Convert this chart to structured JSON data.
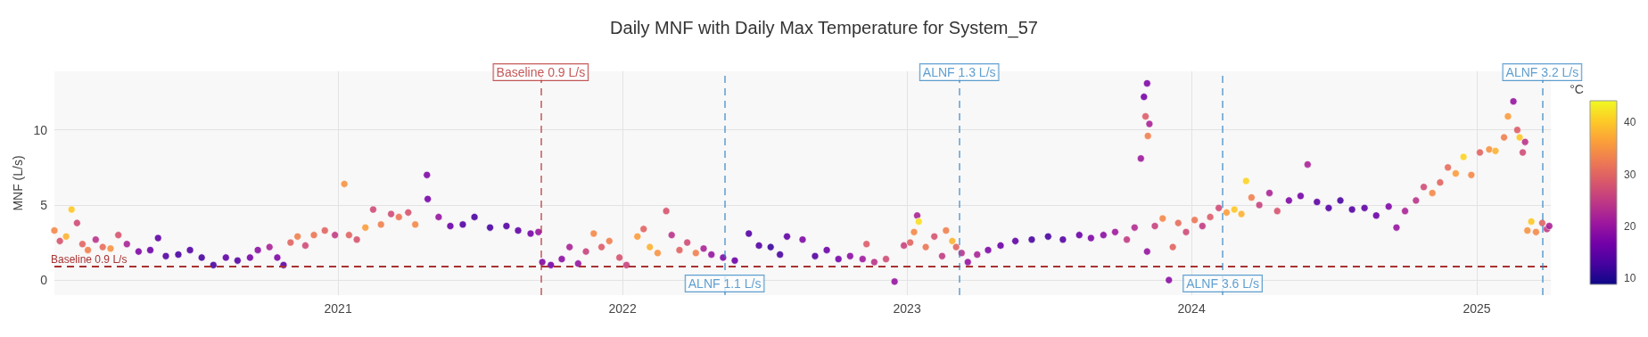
{
  "chart_data": {
    "type": "scatter",
    "title": "Daily MNF with Daily Max Temperature for System_57",
    "ylabel": "MNF (L/s)",
    "clabel": "°C",
    "x": [
      "2020-01-03",
      "2020-01-10",
      "2020-01-18",
      "2020-01-25",
      "2020-02-01",
      "2020-02-08",
      "2020-02-15",
      "2020-02-25",
      "2020-03-05",
      "2020-03-15",
      "2020-03-25",
      "2020-04-05",
      "2020-04-20",
      "2020-05-05",
      "2020-05-15",
      "2020-05-25",
      "2020-06-10",
      "2020-06-25",
      "2020-07-10",
      "2020-07-25",
      "2020-08-10",
      "2020-08-25",
      "2020-09-10",
      "2020-09-20",
      "2020-10-05",
      "2020-10-15",
      "2020-10-23",
      "2020-11-01",
      "2020-11-10",
      "2020-11-20",
      "2020-12-01",
      "2020-12-15",
      "2020-12-28",
      "2021-01-09",
      "2021-01-15",
      "2021-01-25",
      "2021-02-05",
      "2021-02-15",
      "2021-02-25",
      "2021-03-10",
      "2021-03-20",
      "2021-04-01",
      "2021-04-10",
      "2021-04-25",
      "2021-04-26",
      "2021-05-10",
      "2021-05-25",
      "2021-06-10",
      "2021-06-25",
      "2021-07-15",
      "2021-08-05",
      "2021-08-20",
      "2021-09-05",
      "2021-09-15",
      "2021-09-20",
      "2021-10-01",
      "2021-10-15",
      "2021-10-25",
      "2021-11-05",
      "2021-11-15",
      "2021-11-25",
      "2021-12-05",
      "2021-12-15",
      "2021-12-28",
      "2022-01-06",
      "2022-01-20",
      "2022-01-28",
      "2022-02-05",
      "2022-02-15",
      "2022-02-26",
      "2022-03-05",
      "2022-03-15",
      "2022-03-25",
      "2022-04-05",
      "2022-04-15",
      "2022-04-25",
      "2022-05-10",
      "2022-05-25",
      "2022-06-12",
      "2022-06-25",
      "2022-07-10",
      "2022-07-22",
      "2022-07-31",
      "2022-08-20",
      "2022-09-05",
      "2022-09-20",
      "2022-10-05",
      "2022-10-20",
      "2022-11-05",
      "2022-11-10",
      "2022-11-20",
      "2022-12-05",
      "2022-12-16",
      "2022-12-28",
      "2023-01-05",
      "2023-01-10",
      "2023-01-14",
      "2023-01-16",
      "2023-01-25",
      "2023-02-05",
      "2023-02-15",
      "2023-02-20",
      "2023-02-28",
      "2023-03-05",
      "2023-03-12",
      "2023-03-20",
      "2023-04-01",
      "2023-04-15",
      "2023-05-01",
      "2023-05-20",
      "2023-06-10",
      "2023-07-01",
      "2023-07-20",
      "2023-08-10",
      "2023-08-25",
      "2023-09-10",
      "2023-09-25",
      "2023-10-10",
      "2023-10-20",
      "2023-10-28",
      "2023-11-01",
      "2023-11-03",
      "2023-11-05",
      "2023-11-06",
      "2023-11-08",
      "2023-11-05",
      "2023-11-15",
      "2023-11-25",
      "2023-12-03",
      "2023-12-08",
      "2023-12-15",
      "2023-12-25",
      "2024-01-05",
      "2024-01-15",
      "2024-01-25",
      "2024-02-05",
      "2024-02-15",
      "2024-02-25",
      "2024-03-05",
      "2024-03-11",
      "2024-03-18",
      "2024-03-28",
      "2024-04-10",
      "2024-04-20",
      "2024-05-05",
      "2024-05-20",
      "2024-05-29",
      "2024-06-10",
      "2024-06-25",
      "2024-07-10",
      "2024-07-25",
      "2024-08-10",
      "2024-08-25",
      "2024-09-10",
      "2024-09-20",
      "2024-10-01",
      "2024-10-15",
      "2024-10-25",
      "2024-11-05",
      "2024-11-15",
      "2024-11-25",
      "2024-12-05",
      "2024-12-15",
      "2024-12-25",
      "2025-01-05",
      "2025-01-17",
      "2025-01-25",
      "2025-02-05",
      "2025-02-10",
      "2025-02-17",
      "2025-02-22",
      "2025-02-25",
      "2025-03-01",
      "2025-03-04",
      "2025-03-07",
      "2025-03-12",
      "2025-03-18",
      "2025-03-26",
      "2025-04-01",
      "2025-04-04"
    ],
    "values": [
      3.3,
      2.6,
      2.9,
      4.7,
      3.8,
      2.4,
      2.0,
      2.7,
      2.2,
      2.1,
      3.0,
      2.4,
      1.9,
      2.0,
      2.8,
      1.6,
      1.7,
      2.0,
      1.5,
      1.0,
      1.5,
      1.3,
      1.5,
      2.0,
      2.2,
      1.5,
      1.0,
      2.5,
      2.9,
      2.3,
      3.0,
      3.3,
      3.0,
      6.4,
      3.0,
      2.7,
      3.5,
      4.7,
      3.7,
      4.4,
      4.2,
      4.5,
      3.7,
      7.0,
      5.4,
      4.2,
      3.6,
      3.7,
      4.2,
      3.5,
      3.6,
      3.3,
      3.1,
      3.2,
      1.2,
      1.0,
      1.4,
      2.2,
      1.1,
      1.9,
      3.1,
      2.2,
      2.6,
      1.5,
      1.0,
      2.9,
      3.4,
      2.2,
      1.8,
      4.6,
      3.0,
      2.0,
      2.5,
      1.8,
      2.1,
      1.7,
      1.5,
      1.3,
      3.1,
      2.3,
      2.2,
      1.7,
      2.9,
      2.7,
      1.6,
      2.0,
      1.4,
      1.6,
      1.4,
      2.4,
      1.2,
      1.4,
      -0.1,
      2.3,
      2.5,
      3.2,
      4.3,
      3.9,
      2.2,
      2.9,
      1.6,
      3.3,
      2.6,
      2.2,
      1.8,
      1.2,
      1.7,
      2.0,
      2.3,
      2.6,
      2.7,
      2.9,
      2.7,
      3.0,
      2.8,
      3.0,
      3.2,
      2.7,
      3.5,
      8.1,
      12.2,
      10.9,
      13.1,
      9.6,
      10.4,
      1.9,
      3.6,
      4.1,
      0.0,
      2.2,
      3.8,
      3.2,
      4.0,
      3.6,
      4.2,
      4.8,
      4.5,
      4.7,
      4.4,
      6.6,
      5.5,
      5.0,
      5.8,
      4.6,
      5.3,
      5.6,
      7.7,
      5.2,
      4.8,
      5.3,
      4.7,
      4.8,
      4.3,
      4.9,
      3.5,
      4.6,
      5.3,
      6.2,
      5.8,
      6.5,
      7.5,
      7.1,
      8.2,
      7.0,
      8.5,
      8.7,
      8.6,
      9.5,
      10.9,
      11.9,
      10.0,
      9.5,
      8.5,
      9.2,
      3.3,
      3.9,
      3.2,
      3.8,
      3.4,
      3.6
    ],
    "cvalues": [
      34,
      28,
      38,
      40,
      27,
      30,
      33,
      24,
      31,
      35,
      28,
      22,
      18,
      16,
      15,
      14,
      13,
      14,
      13,
      13,
      15,
      14,
      17,
      19,
      22,
      18,
      15,
      30,
      33,
      27,
      32,
      30,
      25,
      35,
      30,
      28,
      36,
      27,
      33,
      27,
      32,
      28,
      34,
      18,
      17,
      20,
      16,
      14,
      13,
      13,
      14,
      15,
      17,
      20,
      18,
      17,
      19,
      22,
      20,
      26,
      34,
      29,
      33,
      28,
      26,
      36,
      30,
      38,
      35,
      28,
      24,
      30,
      27,
      33,
      22,
      20,
      18,
      16,
      14,
      14,
      12,
      13,
      15,
      18,
      14,
      16,
      17,
      19,
      21,
      29,
      24,
      27,
      20,
      26,
      30,
      34,
      22,
      42,
      32,
      28,
      25,
      33,
      38,
      30,
      24,
      20,
      22,
      18,
      16,
      15,
      13,
      13,
      14,
      16,
      18,
      19,
      21,
      25,
      23,
      21,
      17,
      29,
      18,
      33,
      22,
      20,
      26,
      34,
      19,
      30,
      31,
      27,
      32,
      25,
      29,
      27,
      36,
      40,
      38,
      41,
      33,
      26,
      22,
      28,
      18,
      17,
      22,
      15,
      14,
      13,
      14,
      15,
      16,
      18,
      20,
      22,
      24,
      27,
      34,
      30,
      31,
      36,
      41,
      34,
      30,
      35,
      38,
      33,
      36,
      20,
      29,
      40,
      27,
      24,
      35,
      40,
      34,
      30,
      25,
      22
    ],
    "marker": "circle",
    "grid": true,
    "xlim": [
      "2020-01-03",
      "2025-04-06"
    ],
    "xticks": [
      "2021",
      "2022",
      "2023",
      "2024",
      "2025"
    ],
    "ylim": [
      -1,
      13.9
    ],
    "yticks": [
      0,
      5,
      10
    ],
    "clim": [
      8.8,
      44.2
    ],
    "cticks": [
      10,
      20,
      30,
      40
    ],
    "ref_lines": [
      {
        "axis": "y",
        "value": 0.9,
        "label": "Baseline 0.9 L/s",
        "color": "#a83232",
        "line_style": "dashed"
      },
      {
        "axis": "x",
        "value": "2021-09-18",
        "label": "Baseline 0.9 L/s",
        "color": "#b22222",
        "line_style": "dashed"
      },
      {
        "axis": "x",
        "value": "2022-05-12",
        "label": "ALNF 1.1 L/s",
        "color": "#2a7fc0",
        "line_style": "dashed"
      },
      {
        "axis": "x",
        "value": "2023-03-09",
        "label": "ALNF 1.3 L/s",
        "color": "#2a7fc0",
        "line_style": "dashed"
      },
      {
        "axis": "x",
        "value": "2024-02-10",
        "label": "ALNF 3.6 L/s",
        "color": "#2a7fc0",
        "line_style": "dashed"
      },
      {
        "axis": "x",
        "value": "2025-03-26",
        "label": "ALNF 3.2 L/s",
        "color": "#2a7fc0",
        "line_style": "dashed"
      }
    ]
  }
}
